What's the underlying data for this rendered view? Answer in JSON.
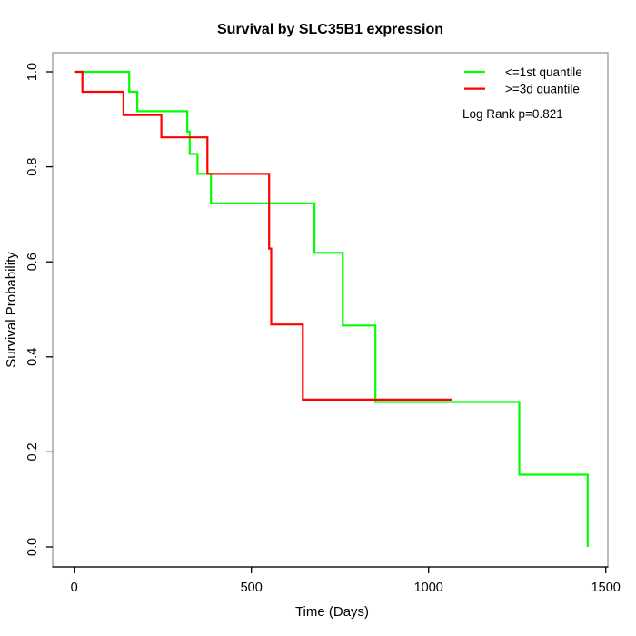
{
  "title": "Survival by SLC35B1 expression",
  "axes": {
    "xlabel": "Time (Days)",
    "ylabel": "Survival Probability",
    "xticks": [
      "0",
      "500",
      "1000",
      "1500"
    ],
    "yticks": [
      "0.0",
      "0.2",
      "0.4",
      "0.6",
      "0.8",
      "1.0"
    ]
  },
  "legend": {
    "items": [
      {
        "label": "<=1st quantile",
        "color": "#00ff00"
      },
      {
        "label": ">=3d quantile",
        "color": "#ff0000"
      }
    ],
    "annotation": "Log Rank p=0.821"
  },
  "colors": {
    "series_low": "#00ff00",
    "series_high": "#ff0000",
    "box_border": "#999999",
    "axis_line": "#000000",
    "text": "#000000",
    "background": "#ffffff"
  },
  "chart_data": {
    "type": "line",
    "subtype": "kaplan-meier-step",
    "title": "Survival by SLC35B1 expression",
    "xlabel": "Time (Days)",
    "ylabel": "Survival Probability",
    "xlim": [
      0,
      1500
    ],
    "ylim": [
      0.0,
      1.0
    ],
    "x_ticks": [
      0,
      500,
      1000,
      1500
    ],
    "y_ticks": [
      0.0,
      0.2,
      0.4,
      0.6,
      0.8,
      1.0
    ],
    "grid": false,
    "legend_position": "top-right",
    "annotation": "Log Rank p=0.821",
    "series": [
      {
        "name": "<=1st quantile",
        "color": "#00ff00",
        "steps": [
          [
            0,
            1.0
          ],
          [
            155,
            0.958
          ],
          [
            178,
            0.917
          ],
          [
            319,
            0.874
          ],
          [
            326,
            0.827
          ],
          [
            348,
            0.785
          ],
          [
            386,
            0.723
          ],
          [
            678,
            0.619
          ],
          [
            758,
            0.466
          ],
          [
            850,
            0.305
          ],
          [
            1256,
            0.152
          ],
          [
            1449,
            0.0
          ]
        ],
        "end_time": 1449
      },
      {
        "name": ">=3d quantile",
        "color": "#ff0000",
        "steps": [
          [
            0,
            1.0
          ],
          [
            23,
            0.958
          ],
          [
            139,
            0.909
          ],
          [
            246,
            0.862
          ],
          [
            376,
            0.785
          ],
          [
            550,
            0.628
          ],
          [
            556,
            0.468
          ],
          [
            645,
            0.31
          ]
        ],
        "end_time": 1067
      }
    ]
  }
}
